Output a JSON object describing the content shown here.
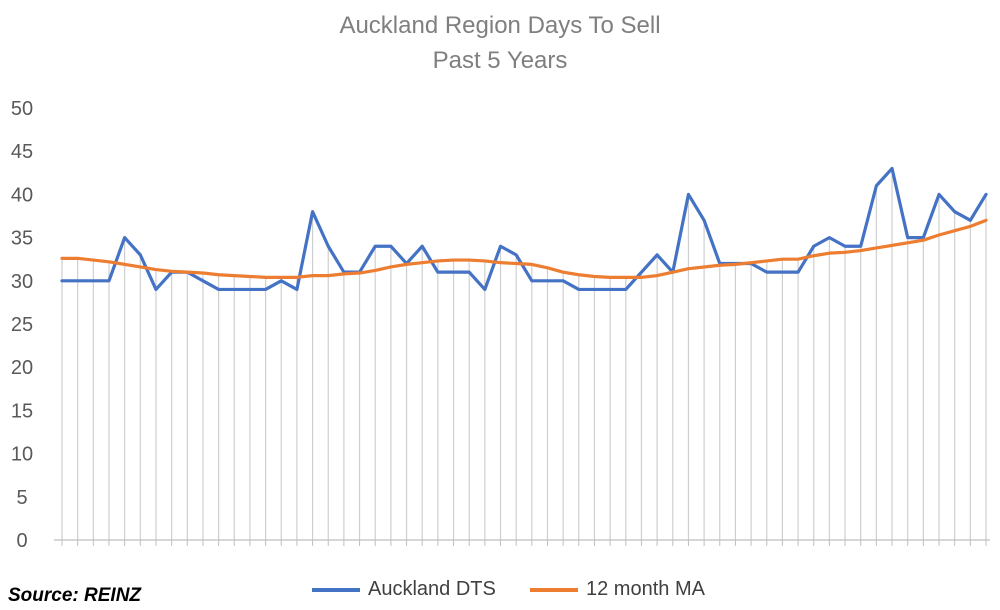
{
  "chart_data": {
    "type": "line",
    "title": "Auckland Region Days To Sell",
    "subtitle": "Past 5 Years",
    "xlabel": "",
    "ylabel": "",
    "ylim": [
      0,
      50
    ],
    "yticks": [
      0,
      5,
      10,
      15,
      20,
      25,
      30,
      35,
      40,
      45,
      50
    ],
    "grid": "vertical drop lines",
    "legend_position": "bottom",
    "series": [
      {
        "name": "Auckland DTS",
        "color": "#4472c4",
        "values": [
          30,
          30,
          30,
          30,
          35,
          33,
          29,
          31,
          31,
          30,
          29,
          29,
          29,
          29,
          30,
          29,
          38,
          34,
          31,
          31,
          34,
          34,
          32,
          34,
          31,
          31,
          31,
          29,
          34,
          33,
          30,
          30,
          30,
          29,
          29,
          29,
          29,
          31,
          33,
          31,
          40,
          37,
          32,
          32,
          32,
          31,
          31,
          31,
          34,
          35,
          34,
          34,
          41,
          43,
          35,
          35,
          40,
          38,
          37,
          40
        ]
      },
      {
        "name": "12 month MA",
        "color": "#ed7d31",
        "values": [
          32.6,
          32.6,
          32.4,
          32.2,
          31.9,
          31.6,
          31.3,
          31.1,
          31.0,
          30.9,
          30.7,
          30.6,
          30.5,
          30.4,
          30.4,
          30.4,
          30.6,
          30.6,
          30.8,
          30.9,
          31.2,
          31.6,
          31.9,
          32.1,
          32.3,
          32.4,
          32.4,
          32.3,
          32.1,
          32.0,
          31.9,
          31.5,
          31.0,
          30.7,
          30.5,
          30.4,
          30.4,
          30.4,
          30.6,
          31.0,
          31.4,
          31.6,
          31.8,
          31.9,
          32.1,
          32.3,
          32.5,
          32.5,
          32.9,
          33.2,
          33.3,
          33.5,
          33.8,
          34.1,
          34.4,
          34.7,
          35.3,
          35.8,
          36.3,
          37.0
        ]
      }
    ],
    "source_note": "Source: REINZ"
  }
}
